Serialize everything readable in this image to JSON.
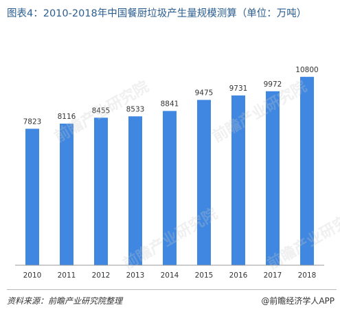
{
  "title": "图表4：2010-2018年中国餐厨垃圾产生量规模测算（单位：万吨）",
  "source": "资料来源：前瞻产业研究院整理",
  "brand": "@前瞻经济学人APP",
  "watermark": "前瞻产业研究院",
  "colors": {
    "bar": "#3f87e0",
    "title": "#2a5d8f",
    "axis": "#9a9a9a"
  },
  "chart_data": {
    "type": "bar",
    "title": "图表4：2010-2018年中国餐厨垃圾产生量规模测算（单位：万吨）",
    "categories": [
      "2010",
      "2011",
      "2012",
      "2013",
      "2014",
      "2015",
      "2016",
      "2017",
      "2018"
    ],
    "values": [
      7823,
      8116,
      8455,
      8533,
      8841,
      9475,
      9731,
      9972,
      10800
    ],
    "data_labels": [
      "7823",
      "8116",
      "8455",
      "8533",
      "8841",
      "9475",
      "9731",
      "9972",
      "10800"
    ],
    "xlabel": "",
    "ylabel": "",
    "ylim": [
      0,
      11500
    ],
    "grid": false,
    "legend": "none"
  }
}
